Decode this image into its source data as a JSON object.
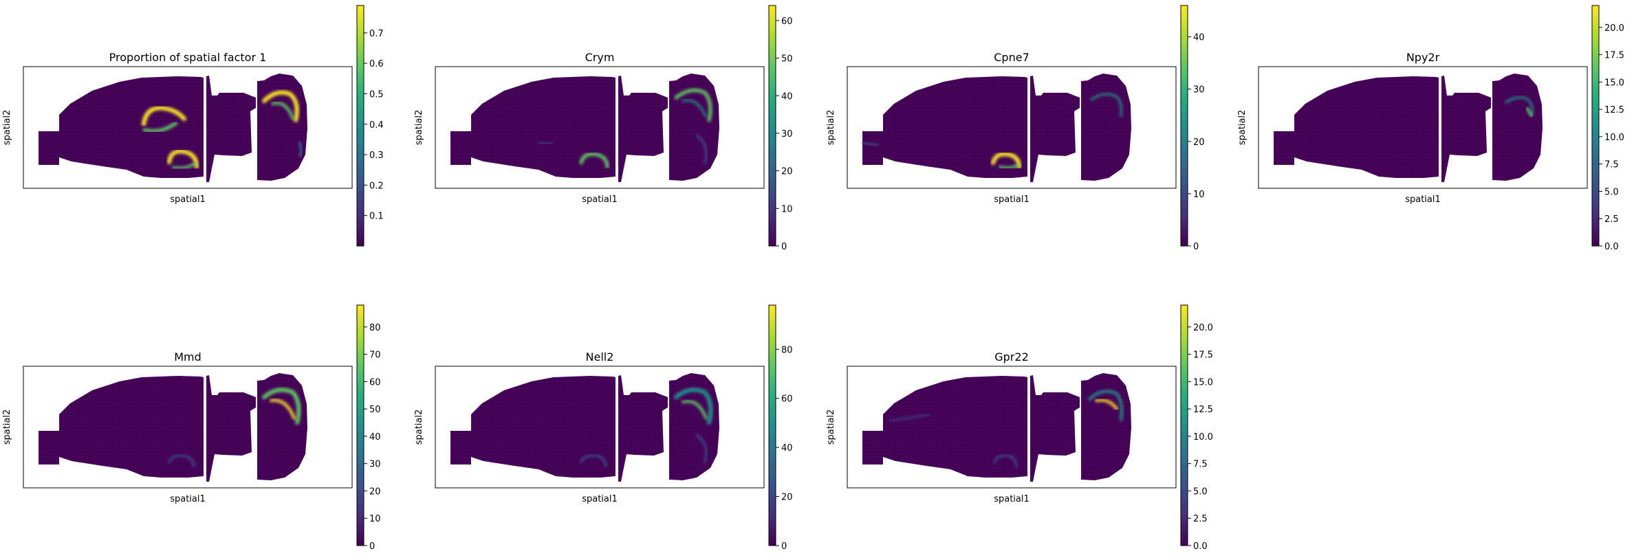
{
  "chart_data": [
    {
      "type": "heatmap",
      "title": "Proportion of spatial factor 1",
      "xlabel": "spatial1",
      "ylabel": "spatial2",
      "colormap": "viridis",
      "colorbar": {
        "range": [
          0.0,
          0.79
        ],
        "ticks": [
          "0.1",
          "0.2",
          "0.3",
          "0.4",
          "0.5",
          "0.6",
          "0.7"
        ],
        "tick_values": [
          0.1,
          0.2,
          0.3,
          0.4,
          0.5,
          0.6,
          0.7
        ]
      }
    },
    {
      "type": "heatmap",
      "title": "Crym",
      "xlabel": "spatial1",
      "ylabel": "spatial2",
      "colormap": "viridis",
      "colorbar": {
        "range": [
          0,
          64
        ],
        "ticks": [
          "0",
          "10",
          "20",
          "30",
          "40",
          "50",
          "60"
        ],
        "tick_values": [
          0,
          10,
          20,
          30,
          40,
          50,
          60
        ]
      }
    },
    {
      "type": "heatmap",
      "title": "Cpne7",
      "xlabel": "spatial1",
      "ylabel": "spatial2",
      "colormap": "viridis",
      "colorbar": {
        "range": [
          0,
          46
        ],
        "ticks": [
          "0",
          "10",
          "20",
          "30",
          "40"
        ],
        "tick_values": [
          0,
          10,
          20,
          30,
          40
        ]
      }
    },
    {
      "type": "heatmap",
      "title": "Npy2r",
      "xlabel": "spatial1",
      "ylabel": "spatial2",
      "colormap": "viridis",
      "colorbar": {
        "range": [
          0,
          22
        ],
        "ticks": [
          "0.0",
          "2.5",
          "5.0",
          "7.5",
          "10.0",
          "12.5",
          "15.0",
          "17.5",
          "20.0"
        ],
        "tick_values": [
          0,
          2.5,
          5,
          7.5,
          10,
          12.5,
          15,
          17.5,
          20
        ]
      }
    },
    {
      "type": "heatmap",
      "title": "Mmd",
      "xlabel": "spatial1",
      "ylabel": "spatial2",
      "colormap": "viridis",
      "colorbar": {
        "range": [
          0,
          88
        ],
        "ticks": [
          "0",
          "10",
          "20",
          "30",
          "40",
          "50",
          "60",
          "70",
          "80"
        ],
        "tick_values": [
          0,
          10,
          20,
          30,
          40,
          50,
          60,
          70,
          80
        ]
      }
    },
    {
      "type": "heatmap",
      "title": "Nell2",
      "xlabel": "spatial1",
      "ylabel": "spatial2",
      "colormap": "viridis",
      "colorbar": {
        "range": [
          0,
          98
        ],
        "ticks": [
          "0",
          "20",
          "40",
          "60",
          "80"
        ],
        "tick_values": [
          0,
          20,
          40,
          60,
          80
        ]
      }
    },
    {
      "type": "heatmap",
      "title": "Gpr22",
      "xlabel": "spatial1",
      "ylabel": "spatial2",
      "colormap": "viridis",
      "colorbar": {
        "range": [
          0,
          22
        ],
        "ticks": [
          "0.0",
          "2.5",
          "5.0",
          "7.5",
          "10.0",
          "12.5",
          "15.0",
          "17.5",
          "20.0"
        ],
        "tick_values": [
          0,
          2.5,
          5,
          7.5,
          10,
          12.5,
          15,
          17.5,
          20
        ]
      }
    }
  ],
  "colors": {
    "viridis_low": "#440154",
    "viridis_q1": "#3b528b",
    "viridis_mid": "#21918c",
    "viridis_q3": "#5ec962",
    "viridis_high": "#fde725"
  }
}
